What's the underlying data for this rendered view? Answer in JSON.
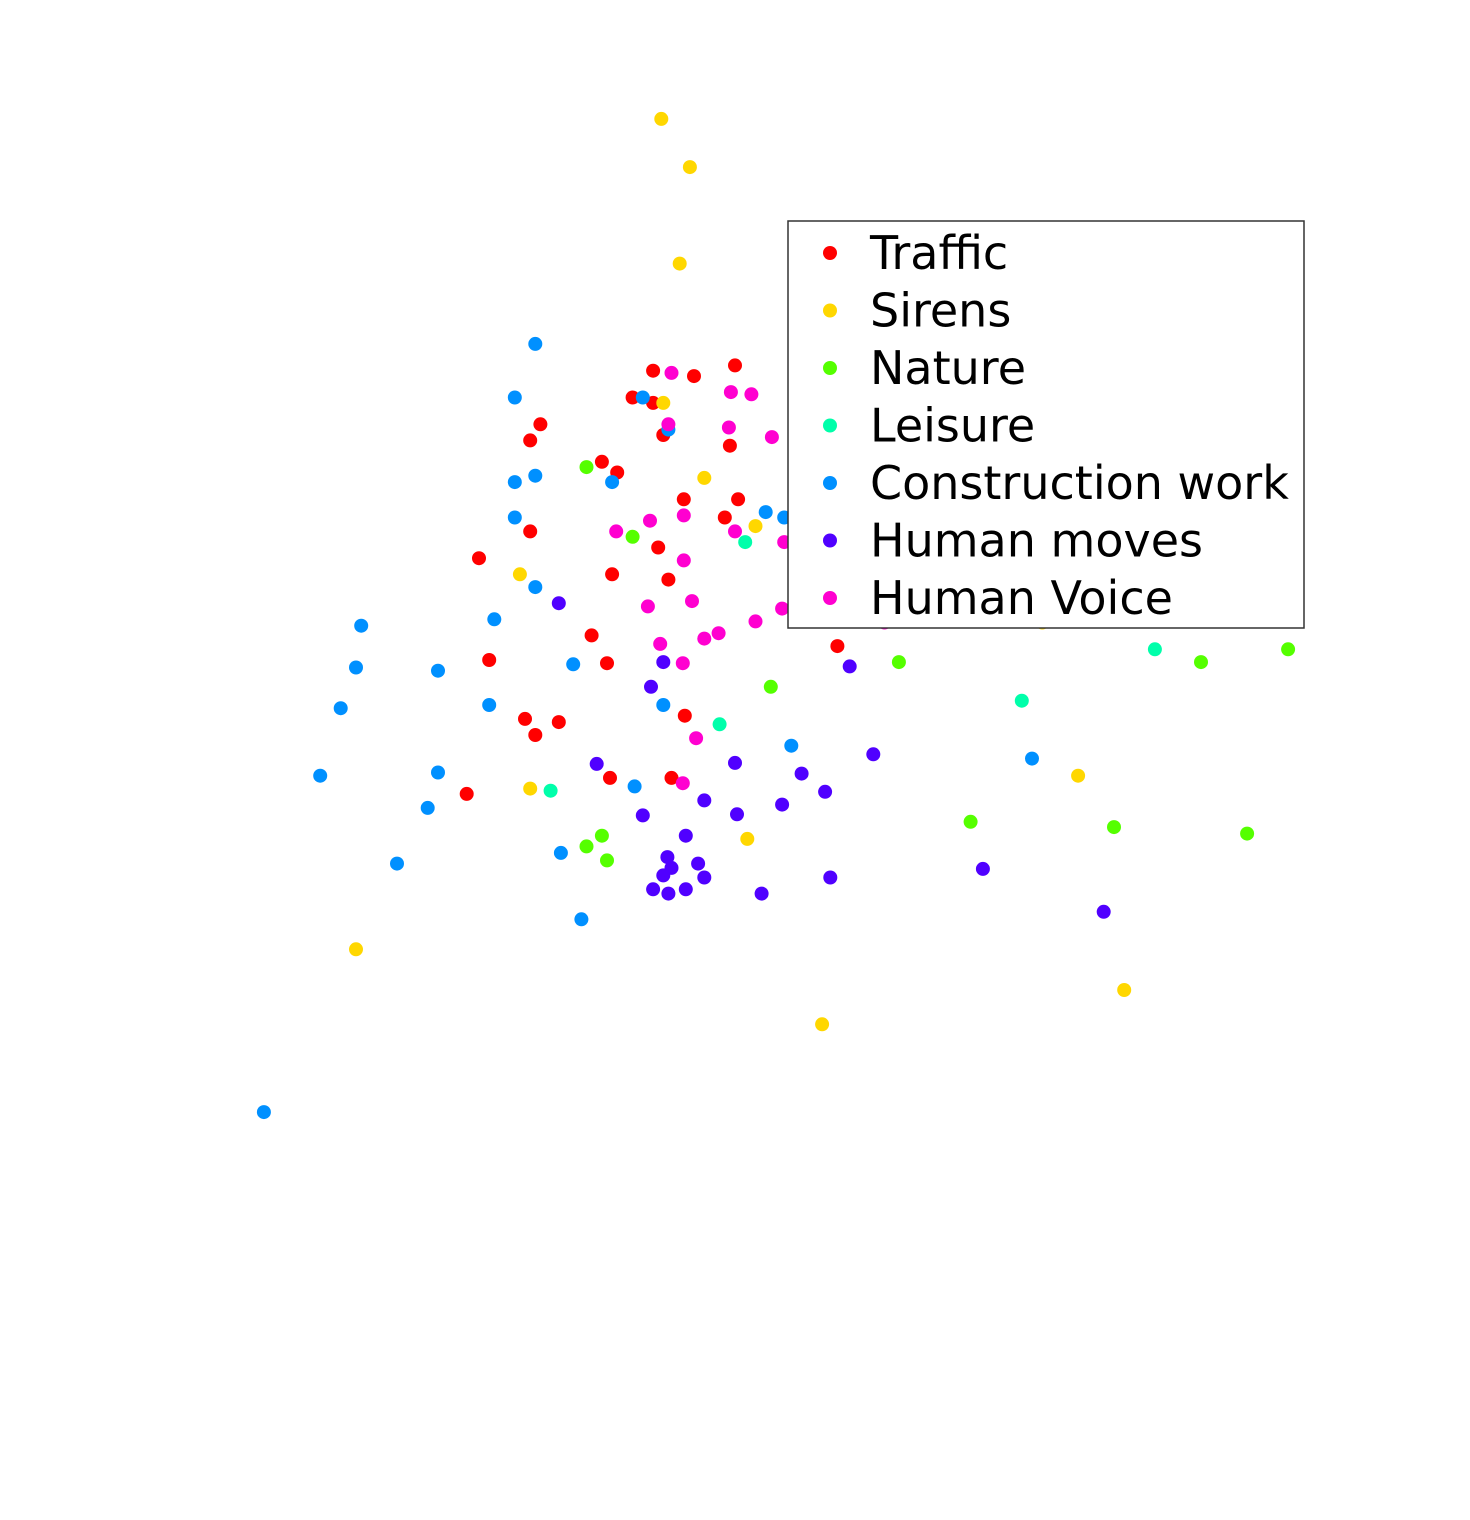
{
  "chart_data": {
    "type": "scatter",
    "title": "",
    "xlabel": "",
    "ylabel": "",
    "axes_visible": false,
    "grid": false,
    "xlim": [
      -5.6,
      6.8
    ],
    "ylim": [
      -6.0,
      6.6
    ],
    "legend": {
      "placement": "top-right",
      "framed": true
    },
    "series": [
      {
        "name": "Traffic",
        "color": "#ff0000",
        "points": [
          [
            -0.2,
            3.7
          ],
          [
            0.2,
            3.65
          ],
          [
            0.6,
            3.75
          ],
          [
            -0.4,
            3.45
          ],
          [
            -0.2,
            3.4
          ],
          [
            -1.3,
            3.2
          ],
          [
            -0.1,
            3.1
          ],
          [
            -1.4,
            3.05
          ],
          [
            0.55,
            3.0
          ],
          [
            -0.7,
            2.85
          ],
          [
            -0.55,
            2.75
          ],
          [
            0.1,
            2.5
          ],
          [
            0.63,
            2.5
          ],
          [
            0.5,
            2.33
          ],
          [
            -1.4,
            2.2
          ],
          [
            -0.15,
            2.05
          ],
          [
            2.1,
            2.03
          ],
          [
            -1.9,
            1.95
          ],
          [
            -0.6,
            1.8
          ],
          [
            -0.05,
            1.75
          ],
          [
            2.21,
            1.72
          ],
          [
            -0.8,
            1.23
          ],
          [
            1.6,
            1.13
          ],
          [
            -1.8,
            1.0
          ],
          [
            -0.65,
            0.97
          ],
          [
            -1.45,
            0.45
          ],
          [
            -1.12,
            0.42
          ],
          [
            0.11,
            0.48
          ],
          [
            -1.35,
            0.3
          ],
          [
            -0.62,
            -0.1
          ],
          [
            -0.02,
            -0.1
          ],
          [
            -2.02,
            -0.25
          ]
        ]
      },
      {
        "name": "Sirens",
        "color": "#ffd700",
        "points": [
          [
            -0.12,
            6.05
          ],
          [
            0.16,
            5.6
          ],
          [
            0.06,
            4.7
          ],
          [
            -0.1,
            3.4
          ],
          [
            1.25,
            3.05
          ],
          [
            0.3,
            2.7
          ],
          [
            0.8,
            2.25
          ],
          [
            -1.5,
            1.8
          ],
          [
            3.6,
            1.35
          ],
          [
            -1.4,
            -0.2
          ],
          [
            0.72,
            -0.67
          ],
          [
            3.95,
            -0.08
          ],
          [
            -3.1,
            -1.7
          ],
          [
            4.4,
            -2.08
          ],
          [
            1.45,
            -2.4
          ]
        ]
      },
      {
        "name": "Nature",
        "color": "#55ff00",
        "points": [
          [
            -0.85,
            2.8
          ],
          [
            -0.4,
            2.15
          ],
          [
            2.2,
            0.98
          ],
          [
            0.95,
            0.75
          ],
          [
            5.45,
            1.45
          ],
          [
            6.0,
            1.1
          ],
          [
            5.15,
            0.98
          ],
          [
            2.9,
            -0.51
          ],
          [
            4.3,
            -0.56
          ],
          [
            5.6,
            -0.62
          ],
          [
            -0.7,
            -0.64
          ],
          [
            -0.85,
            -0.74
          ],
          [
            -0.65,
            -0.87
          ]
        ]
      },
      {
        "name": "Leisure",
        "color": "#00ffaa",
        "points": [
          [
            0.7,
            2.1
          ],
          [
            4.7,
            1.1
          ],
          [
            3.4,
            0.62
          ],
          [
            0.45,
            0.4
          ],
          [
            -1.2,
            -0.22
          ]
        ]
      },
      {
        "name": "Construction work",
        "color": "#0090ff",
        "points": [
          [
            -1.35,
            3.95
          ],
          [
            -0.3,
            3.45
          ],
          [
            -1.55,
            3.45
          ],
          [
            -0.05,
            3.15
          ],
          [
            -1.35,
            2.72
          ],
          [
            -1.55,
            2.66
          ],
          [
            -0.6,
            2.66
          ],
          [
            0.9,
            2.38
          ],
          [
            1.08,
            2.33
          ],
          [
            -1.55,
            2.33
          ],
          [
            -1.35,
            1.68
          ],
          [
            1.2,
            1.45
          ],
          [
            -1.75,
            1.38
          ],
          [
            -3.05,
            1.32
          ],
          [
            -3.1,
            0.93
          ],
          [
            -2.3,
            0.9
          ],
          [
            -0.98,
            0.96
          ],
          [
            -1.8,
            0.58
          ],
          [
            -0.1,
            0.58
          ],
          [
            -3.25,
            0.55
          ],
          [
            1.15,
            0.2
          ],
          [
            3.5,
            0.08
          ],
          [
            -3.45,
            -0.08
          ],
          [
            -2.3,
            -0.05
          ],
          [
            -0.38,
            -0.18
          ],
          [
            -2.4,
            -0.38
          ],
          [
            -1.1,
            -0.8
          ],
          [
            -2.7,
            -0.9
          ],
          [
            -0.9,
            -1.42
          ],
          [
            -4.0,
            -3.22
          ]
        ]
      },
      {
        "name": "Human moves",
        "color": "#5000ff",
        "points": [
          [
            -1.12,
            1.53
          ],
          [
            -0.1,
            0.98
          ],
          [
            1.72,
            0.94
          ],
          [
            -0.22,
            0.75
          ],
          [
            -0.75,
            0.03
          ],
          [
            0.6,
            0.04
          ],
          [
            1.95,
            0.12
          ],
          [
            1.25,
            -0.06
          ],
          [
            1.48,
            -0.23
          ],
          [
            0.3,
            -0.31
          ],
          [
            0.62,
            -0.44
          ],
          [
            1.06,
            -0.35
          ],
          [
            -0.3,
            -0.45
          ],
          [
            0.12,
            -0.64
          ],
          [
            -0.06,
            -0.84
          ],
          [
            0.24,
            -0.9
          ],
          [
            -0.02,
            -0.94
          ],
          [
            -0.1,
            -1.01
          ],
          [
            0.3,
            -1.03
          ],
          [
            1.53,
            -1.03
          ],
          [
            3.02,
            -0.95
          ],
          [
            -0.05,
            -1.18
          ],
          [
            0.12,
            -1.14
          ],
          [
            0.86,
            -1.18
          ],
          [
            -0.2,
            -1.14
          ],
          [
            4.2,
            -1.35
          ]
        ]
      },
      {
        "name": "Human Voice",
        "color": "#ff00d0",
        "points": [
          [
            0.96,
            3.08
          ],
          [
            -0.02,
            3.68
          ],
          [
            0.56,
            3.5
          ],
          [
            0.76,
            3.48
          ],
          [
            -0.05,
            3.2
          ],
          [
            0.54,
            3.17
          ],
          [
            0.1,
            2.35
          ],
          [
            -0.23,
            2.3
          ],
          [
            -0.56,
            2.2
          ],
          [
            0.6,
            2.2
          ],
          [
            1.08,
            2.1
          ],
          [
            0.1,
            1.93
          ],
          [
            1.96,
            1.86
          ],
          [
            0.18,
            1.55
          ],
          [
            -0.25,
            1.5
          ],
          [
            1.06,
            1.48
          ],
          [
            2.06,
            1.35
          ],
          [
            0.8,
            1.36
          ],
          [
            0.44,
            1.25
          ],
          [
            0.3,
            1.2
          ],
          [
            -0.13,
            1.15
          ],
          [
            0.09,
            0.97
          ],
          [
            0.22,
            0.27
          ],
          [
            0.09,
            -0.15
          ]
        ]
      }
    ]
  }
}
